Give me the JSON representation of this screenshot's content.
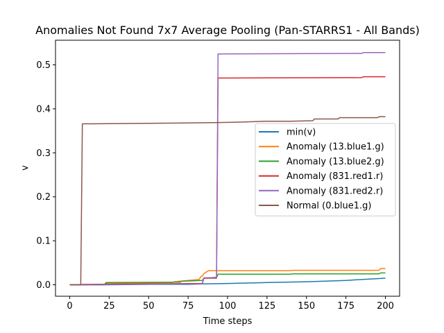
{
  "chart_data": {
    "type": "line",
    "title": "Anomalies Not Found 7x7 Average Pooling (Pan-STARRS1 - All Bands)",
    "xlabel": "Time steps",
    "ylabel": "v",
    "xlim": [
      -9,
      209
    ],
    "ylim": [
      -0.026,
      0.556
    ],
    "xticks": [
      0,
      25,
      50,
      75,
      100,
      125,
      150,
      175,
      200
    ],
    "yticks": [
      0.0,
      0.1,
      0.2,
      0.3,
      0.4,
      0.5
    ],
    "ytick_labels": [
      "0.0",
      "0.1",
      "0.2",
      "0.3",
      "0.4",
      "0.5"
    ],
    "grid": false,
    "legend_position": "center-right",
    "series": [
      {
        "name": "min(v)",
        "color": "#1f77b4",
        "x": [
          0,
          25,
          50,
          75,
          84,
          100,
          125,
          150,
          175,
          200
        ],
        "y": [
          0.0,
          0.0,
          0.001,
          0.001,
          0.002,
          0.003,
          0.005,
          0.007,
          0.01,
          0.015
        ]
      },
      {
        "name": "Anomaly (13.blue1.g)",
        "color": "#ff7f0e",
        "x": [
          0,
          22,
          23,
          65,
          66,
          82,
          83,
          84,
          85,
          86,
          87,
          88,
          140,
          141,
          196,
          197,
          200
        ],
        "y": [
          0.0,
          0.0,
          0.003,
          0.005,
          0.007,
          0.012,
          0.018,
          0.02,
          0.025,
          0.028,
          0.03,
          0.032,
          0.032,
          0.033,
          0.033,
          0.037,
          0.037
        ]
      },
      {
        "name": "Anomaly (13.blue2.g)",
        "color": "#2ca02c",
        "x": [
          0,
          22,
          23,
          70,
          71,
          84,
          85,
          93,
          94,
          140,
          141,
          196,
          197,
          200
        ],
        "y": [
          0.0,
          0.0,
          0.005,
          0.006,
          0.008,
          0.01,
          0.015,
          0.017,
          0.024,
          0.024,
          0.025,
          0.025,
          0.027,
          0.027
        ]
      },
      {
        "name": "Anomaly (831.red1.r)",
        "color": "#d62728",
        "x": [
          0,
          7,
          8,
          84,
          85,
          93,
          94,
          185,
          186,
          200
        ],
        "y": [
          0.0,
          0.0,
          0.001,
          0.003,
          0.015,
          0.015,
          0.47,
          0.471,
          0.473,
          0.473
        ]
      },
      {
        "name": "Anomaly (831.red2.r)",
        "color": "#9467bd",
        "x": [
          0,
          84,
          85,
          93,
          94,
          185,
          186,
          200
        ],
        "y": [
          0.0,
          0.002,
          0.016,
          0.016,
          0.525,
          0.526,
          0.528,
          0.528
        ]
      },
      {
        "name": "Normal (0.blue1.g)",
        "color": "#8c564b",
        "x": [
          0,
          7,
          8,
          50,
          95,
          110,
          125,
          140,
          154,
          155,
          170,
          171,
          195,
          196,
          200
        ],
        "y": [
          0.0,
          0.0,
          0.366,
          0.367,
          0.369,
          0.37,
          0.372,
          0.372,
          0.373,
          0.377,
          0.377,
          0.38,
          0.38,
          0.382,
          0.382
        ]
      }
    ]
  }
}
